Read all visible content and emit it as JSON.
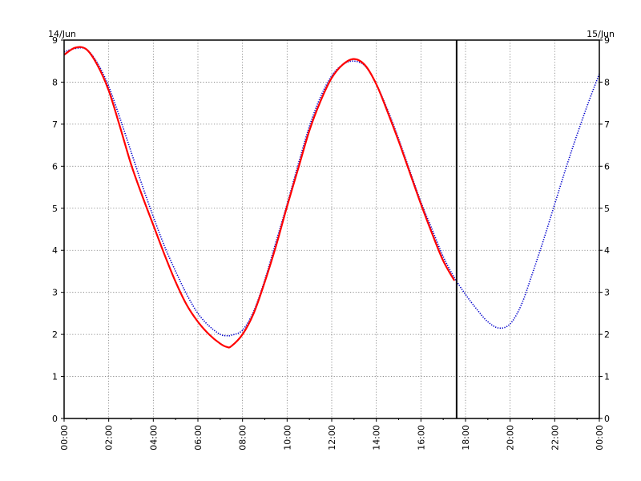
{
  "chart_data": {
    "type": "line",
    "title": "",
    "xlabel": "",
    "ylabel": "",
    "date_start_label": "14/Jun",
    "date_end_label": "15/Jun",
    "x_tick_labels": [
      "00:00",
      "02:00",
      "04:00",
      "06:00",
      "08:00",
      "10:00",
      "12:00",
      "14:00",
      "16:00",
      "18:00",
      "20:00",
      "22:00",
      "00:00"
    ],
    "y_tick_labels": [
      "0",
      "1",
      "2",
      "3",
      "4",
      "5",
      "6",
      "7",
      "8",
      "9"
    ],
    "xlim_hours": [
      0,
      24
    ],
    "ylim": [
      0,
      9
    ],
    "grid": true,
    "current_time_hour": 17.6,
    "series": [
      {
        "color": "#ff0000",
        "style": "solid",
        "x": [
          0,
          0.5,
          1,
          1.5,
          2,
          2.5,
          3,
          3.5,
          4,
          4.5,
          5,
          5.5,
          6,
          6.5,
          7,
          7.3,
          7.5,
          8,
          8.5,
          9,
          9.5,
          10,
          10.5,
          11,
          11.5,
          12,
          12.5,
          13,
          13.5,
          14,
          14.5,
          15,
          15.5,
          16,
          16.5,
          17,
          17.5
        ],
        "y": [
          8.65,
          8.82,
          8.78,
          8.4,
          7.8,
          6.95,
          6.05,
          5.3,
          4.6,
          3.9,
          3.25,
          2.7,
          2.3,
          2.0,
          1.78,
          1.7,
          1.72,
          2.0,
          2.5,
          3.25,
          4.1,
          5.05,
          5.95,
          6.85,
          7.55,
          8.1,
          8.42,
          8.55,
          8.4,
          7.95,
          7.3,
          6.6,
          5.85,
          5.1,
          4.4,
          3.75,
          3.28
        ]
      },
      {
        "color": "#0000cc",
        "style": "dotted",
        "x": [
          0,
          0.5,
          1,
          1.5,
          2,
          2.5,
          3,
          3.5,
          4,
          4.5,
          5,
          5.5,
          6,
          6.5,
          7,
          7.3,
          7.5,
          8,
          8.5,
          9,
          9.5,
          10,
          10.5,
          11,
          11.5,
          12,
          12.5,
          13,
          13.5,
          14,
          14.5,
          15,
          15.5,
          16,
          16.5,
          17,
          17.5,
          18,
          18.5,
          19,
          19.5,
          20,
          20.5,
          21,
          21.5,
          22,
          22.5,
          23,
          23.5,
          24
        ],
        "y": [
          8.72,
          8.8,
          8.78,
          8.45,
          7.9,
          7.15,
          6.35,
          5.55,
          4.8,
          4.1,
          3.5,
          2.95,
          2.5,
          2.2,
          2.0,
          1.97,
          1.98,
          2.1,
          2.55,
          3.3,
          4.2,
          5.1,
          6.05,
          6.95,
          7.65,
          8.15,
          8.42,
          8.5,
          8.38,
          7.95,
          7.35,
          6.65,
          5.9,
          5.15,
          4.5,
          3.85,
          3.35,
          2.95,
          2.6,
          2.3,
          2.15,
          2.25,
          2.7,
          3.45,
          4.25,
          5.1,
          5.95,
          6.75,
          7.5,
          8.2
        ]
      }
    ]
  }
}
